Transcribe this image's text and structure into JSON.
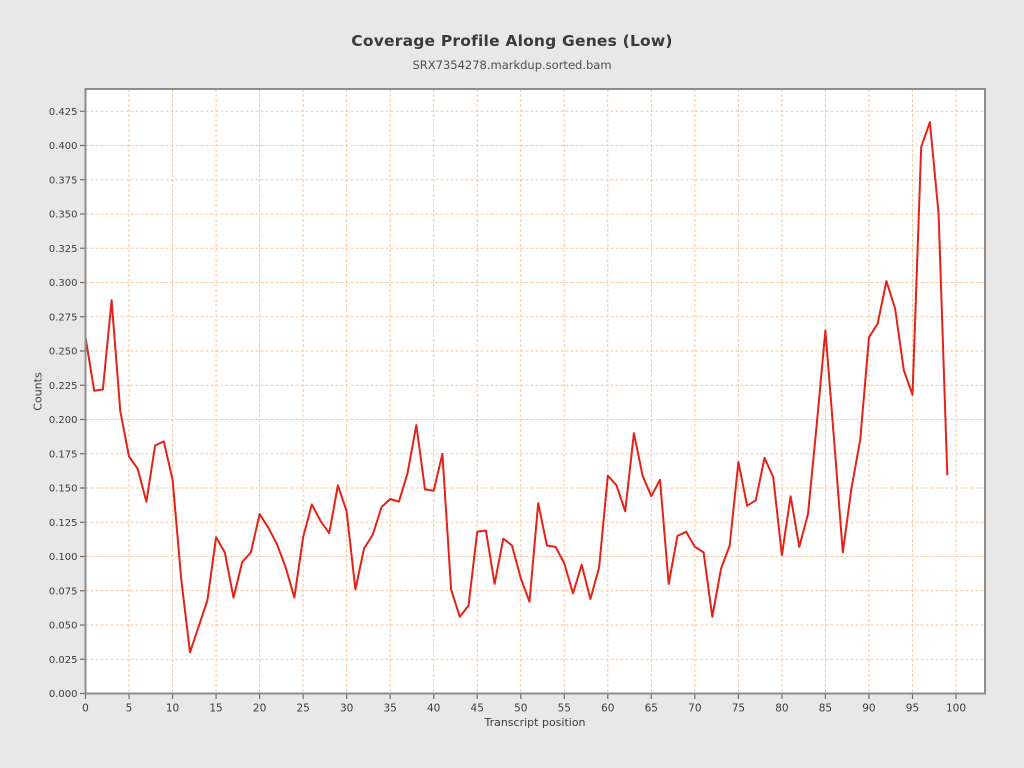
{
  "title": "Coverage Profile Along Genes (Low)",
  "subtitle": "SRX7354278.markdup.sorted.bam",
  "axes": {
    "x_label": "Transcript position",
    "y_label": "Counts",
    "x_ticks": [
      0,
      5,
      10,
      15,
      20,
      25,
      30,
      35,
      40,
      45,
      50,
      55,
      60,
      65,
      70,
      75,
      80,
      85,
      90,
      95,
      100
    ],
    "y_ticks": [
      "0.000",
      "0.025",
      "0.050",
      "0.075",
      "0.100",
      "0.125",
      "0.150",
      "0.175",
      "0.200",
      "0.225",
      "0.250",
      "0.275",
      "0.300",
      "0.325",
      "0.350",
      "0.375",
      "0.400",
      "0.425"
    ]
  },
  "colors": {
    "background": "#e8e8e8",
    "plot_background": "#ffffff",
    "grid": "#f6c9a2",
    "frame": "#8d8d8d",
    "tick": "#6b6b6b",
    "tick_text": "#3c3c3c",
    "line": "#e42217"
  },
  "chart_data": {
    "type": "line",
    "title": "Coverage Profile Along Genes (Low)",
    "subtitle": "SRX7354278.markdup.sorted.bam",
    "xlabel": "Transcript position",
    "ylabel": "Counts",
    "xlim": [
      0,
      100
    ],
    "ylim": [
      0.0,
      0.425
    ],
    "x_tick_step": 5,
    "y_tick_step": 0.025,
    "grid": "dashed",
    "legend": "none",
    "series": [
      {
        "name": "SRX7354278.markdup.sorted.bam",
        "color": "#e42217",
        "x_start": 0,
        "x_step": 1,
        "values": [
          0.26,
          0.221,
          0.222,
          0.287,
          0.206,
          0.173,
          0.164,
          0.14,
          0.181,
          0.184,
          0.156,
          0.083,
          0.03,
          0.049,
          0.068,
          0.114,
          0.103,
          0.07,
          0.096,
          0.103,
          0.131,
          0.121,
          0.109,
          0.092,
          0.07,
          0.114,
          0.138,
          0.126,
          0.117,
          0.152,
          0.133,
          0.076,
          0.106,
          0.116,
          0.136,
          0.142,
          0.14,
          0.161,
          0.196,
          0.149,
          0.148,
          0.175,
          0.076,
          0.056,
          0.064,
          0.118,
          0.119,
          0.08,
          0.113,
          0.108,
          0.084,
          0.067,
          0.139,
          0.108,
          0.107,
          0.095,
          0.073,
          0.094,
          0.069,
          0.092,
          0.159,
          0.152,
          0.133,
          0.19,
          0.159,
          0.144,
          0.156,
          0.08,
          0.115,
          0.118,
          0.107,
          0.103,
          0.056,
          0.091,
          0.108,
          0.169,
          0.137,
          0.141,
          0.172,
          0.158,
          0.101,
          0.144,
          0.107,
          0.131,
          0.196,
          0.265,
          0.185,
          0.103,
          0.15,
          0.185,
          0.26,
          0.27,
          0.301,
          0.281,
          0.236,
          0.218,
          0.399,
          0.417,
          0.35,
          0.16
        ]
      }
    ]
  }
}
